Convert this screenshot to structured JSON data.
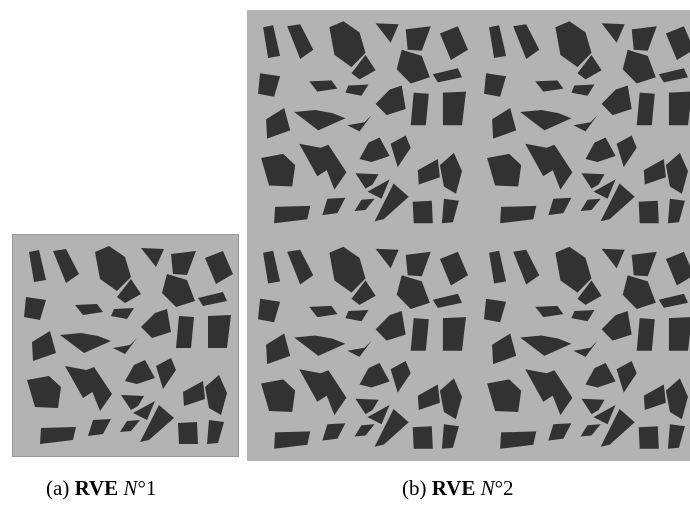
{
  "colors": {
    "matrix": "#b3b3b3",
    "inclusion": "#323232",
    "frame": "#999999"
  },
  "figure": {
    "panels": [
      {
        "id": "a",
        "caption": {
          "prefix": "(a) ",
          "bold": "RVE",
          "math_symbol": "N",
          "math_rest": "°1"
        }
      },
      {
        "id": "b",
        "caption": {
          "prefix": "(b) ",
          "bold": "RVE",
          "math_symbol": "N",
          "math_rest": "°2"
        }
      }
    ]
  }
}
